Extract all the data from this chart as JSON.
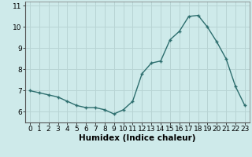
{
  "x": [
    0,
    1,
    2,
    3,
    4,
    5,
    6,
    7,
    8,
    9,
    10,
    11,
    12,
    13,
    14,
    15,
    16,
    17,
    18,
    19,
    20,
    21,
    22,
    23
  ],
  "y": [
    7.0,
    6.9,
    6.8,
    6.7,
    6.5,
    6.3,
    6.2,
    6.2,
    6.1,
    5.9,
    6.1,
    6.5,
    7.8,
    8.3,
    8.4,
    9.4,
    9.8,
    10.5,
    10.55,
    10.0,
    9.3,
    8.5,
    7.2,
    6.3
  ],
  "xlabel": "Humidex (Indice chaleur)",
  "xlim": [
    -0.5,
    23.5
  ],
  "ylim": [
    5.5,
    11.2
  ],
  "yticks": [
    6,
    7,
    8,
    9,
    10,
    11
  ],
  "xticks": [
    0,
    1,
    2,
    3,
    4,
    5,
    6,
    7,
    8,
    9,
    10,
    11,
    12,
    13,
    14,
    15,
    16,
    17,
    18,
    19,
    20,
    21,
    22,
    23
  ],
  "line_color": "#2d6e6e",
  "marker": "+",
  "bg_color": "#ceeaea",
  "grid_color": "#b8d4d4",
  "label_fontsize": 7.5,
  "tick_fontsize": 6.5
}
